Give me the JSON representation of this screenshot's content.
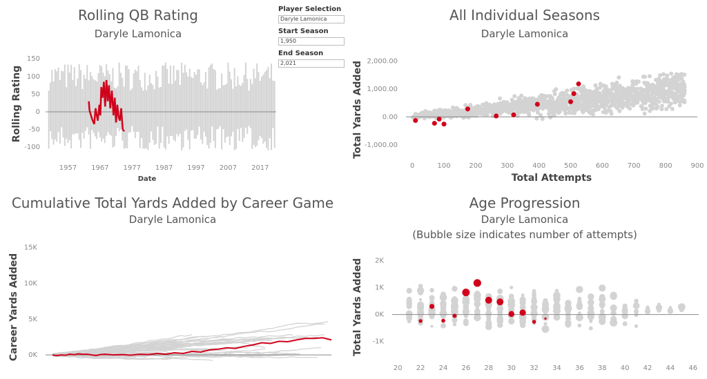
{
  "controls": {
    "player_selection": {
      "label": "Player Selection",
      "value": "Daryle Lamonica"
    },
    "start_season": {
      "label": "Start Season",
      "value": "1,950"
    },
    "end_season": {
      "label": "End Season",
      "value": "2,021"
    }
  },
  "colors": {
    "highlight": "#d0021b",
    "background_series": "#d3d3d3",
    "zero_line": "#888888"
  },
  "chart_data": [
    {
      "id": "rolling",
      "type": "line",
      "title": "Rolling QB Rating",
      "subtitle": "Daryle Lamonica",
      "xlabel": "Date",
      "ylabel": "Rolling Rating",
      "xticks": [
        1957,
        1967,
        1977,
        1987,
        1997,
        2007,
        2017
      ],
      "yticks": [
        150,
        100,
        50,
        0,
        -50,
        -100
      ],
      "xlim": [
        1950,
        2022
      ],
      "ylim": [
        -125,
        170
      ],
      "highlight_series": {
        "name": "Daryle Lamonica",
        "x": [
          1963.5,
          1963.7,
          1964.5,
          1965.2,
          1965.6,
          1966.3,
          1966.8,
          1967.1,
          1967.4,
          1967.8,
          1968.2,
          1968.6,
          1969.0,
          1969.4,
          1969.8,
          1970.2,
          1970.7,
          1971.2,
          1971.6,
          1972.0,
          1972.4,
          1972.8,
          1973.2,
          1973.6,
          1974.1,
          1974.6
        ],
        "y": [
          30,
          5,
          -20,
          -35,
          10,
          -25,
          20,
          -10,
          70,
          40,
          85,
          15,
          90,
          30,
          75,
          10,
          60,
          -10,
          40,
          -30,
          20,
          -15,
          -25,
          10,
          -50,
          -55
        ]
      }
    },
    {
      "id": "seasons",
      "type": "scatter",
      "title": "All Individual Seasons",
      "subtitle": "Daryle Lamonica",
      "xlabel": "Total Attempts",
      "ylabel": "Total Yards Added",
      "xticks": [
        0,
        100,
        200,
        300,
        400,
        500,
        600,
        700,
        800,
        900
      ],
      "yticks": [
        2000,
        1000,
        0,
        -1000
      ],
      "ytick_labels": [
        "2,000.00",
        "1,000.00",
        "0.00",
        "-1,000.00"
      ],
      "xlim": [
        -20,
        900
      ],
      "ylim": [
        -1500,
        2500
      ],
      "highlight_points": {
        "name": "Daryle Lamonica",
        "x": [
          10,
          70,
          85,
          100,
          175,
          265,
          320,
          395,
          500,
          510,
          525
        ],
        "y": [
          -130,
          -230,
          -80,
          -260,
          280,
          30,
          70,
          450,
          540,
          830,
          1180
        ]
      }
    },
    {
      "id": "cumulative",
      "type": "line",
      "title": "Cumulative Total Yards Added by Career Game",
      "subtitle": "Daryle Lamonica",
      "xlabel": "",
      "ylabel": "Career Yards Added",
      "yticks": [
        15000,
        10000,
        5000,
        0
      ],
      "ytick_labels": [
        "15K",
        "10K",
        "5K",
        "0K"
      ],
      "xlim": [
        0,
        320
      ],
      "ylim": [
        -2500,
        17000
      ],
      "highlight_series": {
        "name": "Daryle Lamonica",
        "x": [
          0,
          5,
          10,
          15,
          20,
          25,
          30,
          35,
          40,
          45,
          50,
          55,
          60,
          70,
          80,
          90,
          100,
          110,
          120,
          130,
          140,
          150,
          160,
          170,
          180,
          190,
          200,
          210,
          220,
          230,
          240,
          250,
          260,
          270,
          280,
          290,
          300,
          310,
          320
        ],
        "y": [
          0,
          -100,
          0,
          -50,
          100,
          30,
          150,
          80,
          100,
          0,
          -80,
          50,
          100,
          0,
          40,
          -40,
          100,
          50,
          200,
          100,
          300,
          200,
          500,
          400,
          700,
          800,
          1000,
          900,
          1200,
          1400,
          1700,
          1600,
          1900,
          1850,
          2100,
          2300,
          2300,
          2400,
          2100
        ]
      }
    },
    {
      "id": "age",
      "type": "scatter",
      "title": "Age Progression",
      "subtitle": "Daryle Lamonica",
      "note": "(Bubble size indicates number of attempts)",
      "xlabel": "",
      "ylabel": "Total Yards Added",
      "xticks": [
        20,
        22,
        24,
        26,
        28,
        30,
        32,
        34,
        36,
        38,
        40,
        42,
        44,
        46
      ],
      "yticks": [
        2000,
        1000,
        0,
        -1000
      ],
      "ytick_labels": [
        "2K",
        "1K",
        "0K",
        "-1K"
      ],
      "xlim": [
        19.5,
        46.5
      ],
      "ylim": [
        -1650,
        2500
      ],
      "highlight_points": {
        "name": "Daryle Lamonica",
        "x": [
          22,
          23,
          24,
          25,
          26,
          27,
          28,
          29,
          30,
          31,
          32,
          33
        ],
        "y": [
          -240,
          300,
          -230,
          -50,
          820,
          1170,
          530,
          470,
          20,
          70,
          -270,
          -150
        ],
        "attempts": [
          70,
          175,
          85,
          100,
          500,
          525,
          400,
          395,
          265,
          320,
          80,
          10
        ]
      }
    }
  ]
}
